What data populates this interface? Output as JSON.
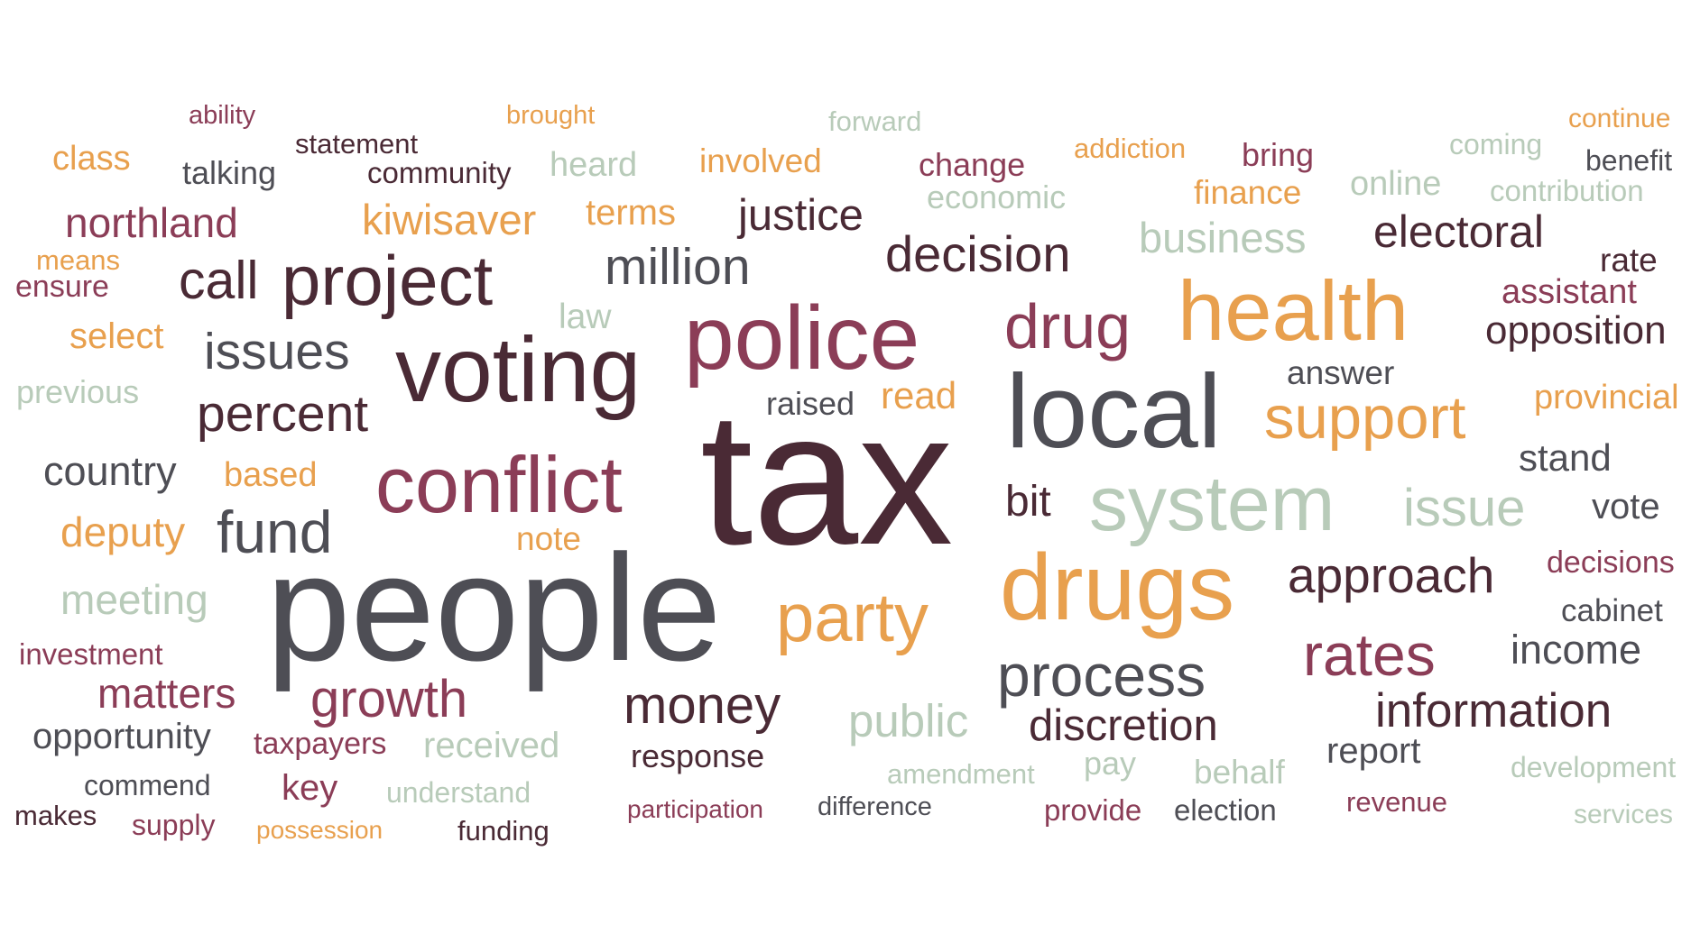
{
  "palette": {
    "plum": "#4a2a35",
    "charcoal": "#4e4e55",
    "maroon": "#8b3d57",
    "orange": "#e8a04e",
    "sage": "#b8cbb9"
  },
  "words": [
    {
      "text": "ability",
      "color": "maroon",
      "weight": 1
    },
    {
      "text": "brought",
      "color": "orange",
      "weight": 1
    },
    {
      "text": "forward",
      "color": "sage",
      "weight": 1
    },
    {
      "text": "continue",
      "color": "orange",
      "weight": 1
    },
    {
      "text": "statement",
      "color": "plum",
      "weight": 1
    },
    {
      "text": "class",
      "color": "orange",
      "weight": 2
    },
    {
      "text": "addiction",
      "color": "orange",
      "weight": 1
    },
    {
      "text": "bring",
      "color": "maroon",
      "weight": 2
    },
    {
      "text": "coming",
      "color": "sage",
      "weight": 1
    },
    {
      "text": "benefit",
      "color": "charcoal",
      "weight": 1
    },
    {
      "text": "talking",
      "color": "charcoal",
      "weight": 2
    },
    {
      "text": "community",
      "color": "plum",
      "weight": 1
    },
    {
      "text": "heard",
      "color": "sage",
      "weight": 2
    },
    {
      "text": "involved",
      "color": "orange",
      "weight": 2
    },
    {
      "text": "change",
      "color": "maroon",
      "weight": 2
    },
    {
      "text": "economic",
      "color": "sage",
      "weight": 1
    },
    {
      "text": "finance",
      "color": "orange",
      "weight": 2
    },
    {
      "text": "online",
      "color": "sage",
      "weight": 2
    },
    {
      "text": "contribution",
      "color": "sage",
      "weight": 1
    },
    {
      "text": "northland",
      "color": "maroon",
      "weight": 3
    },
    {
      "text": "kiwisaver",
      "color": "orange",
      "weight": 3
    },
    {
      "text": "terms",
      "color": "orange",
      "weight": 2
    },
    {
      "text": "justice",
      "color": "plum",
      "weight": 3
    },
    {
      "text": "business",
      "color": "sage",
      "weight": 3
    },
    {
      "text": "electoral",
      "color": "plum",
      "weight": 3
    },
    {
      "text": "means",
      "color": "orange",
      "weight": 1
    },
    {
      "text": "decision",
      "color": "plum",
      "weight": 4
    },
    {
      "text": "rate",
      "color": "plum",
      "weight": 2
    },
    {
      "text": "ensure",
      "color": "maroon",
      "weight": 2
    },
    {
      "text": "call",
      "color": "plum",
      "weight": 4
    },
    {
      "text": "project",
      "color": "plum",
      "weight": 5
    },
    {
      "text": "million",
      "color": "charcoal",
      "weight": 4
    },
    {
      "text": "assistant",
      "color": "maroon",
      "weight": 2
    },
    {
      "text": "health",
      "color": "orange",
      "weight": 6
    },
    {
      "text": "law",
      "color": "sage",
      "weight": 2
    },
    {
      "text": "select",
      "color": "orange",
      "weight": 2
    },
    {
      "text": "drug",
      "color": "maroon",
      "weight": 5
    },
    {
      "text": "opposition",
      "color": "plum",
      "weight": 3
    },
    {
      "text": "issues",
      "color": "charcoal",
      "weight": 4
    },
    {
      "text": "police",
      "color": "maroon",
      "weight": 6
    },
    {
      "text": "voting",
      "color": "plum",
      "weight": 6
    },
    {
      "text": "answer",
      "color": "charcoal",
      "weight": 2
    },
    {
      "text": "previous",
      "color": "sage",
      "weight": 2
    },
    {
      "text": "raised",
      "color": "charcoal",
      "weight": 2
    },
    {
      "text": "read",
      "color": "orange",
      "weight": 2
    },
    {
      "text": "provincial",
      "color": "orange",
      "weight": 2
    },
    {
      "text": "percent",
      "color": "plum",
      "weight": 4
    },
    {
      "text": "local",
      "color": "charcoal",
      "weight": 7
    },
    {
      "text": "support",
      "color": "orange",
      "weight": 4
    },
    {
      "text": "stand",
      "color": "charcoal",
      "weight": 2
    },
    {
      "text": "country",
      "color": "charcoal",
      "weight": 3
    },
    {
      "text": "based",
      "color": "orange",
      "weight": 2
    },
    {
      "text": "conflict",
      "color": "maroon",
      "weight": 6
    },
    {
      "text": "tax",
      "color": "plum",
      "weight": 10
    },
    {
      "text": "bit",
      "color": "plum",
      "weight": 3
    },
    {
      "text": "system",
      "color": "sage",
      "weight": 6
    },
    {
      "text": "issue",
      "color": "sage",
      "weight": 4
    },
    {
      "text": "vote",
      "color": "charcoal",
      "weight": 2
    },
    {
      "text": "deputy",
      "color": "orange",
      "weight": 3
    },
    {
      "text": "fund",
      "color": "charcoal",
      "weight": 5
    },
    {
      "text": "note",
      "color": "orange",
      "weight": 2
    },
    {
      "text": "decisions",
      "color": "maroon",
      "weight": 2
    },
    {
      "text": "drugs",
      "color": "orange",
      "weight": 7
    },
    {
      "text": "approach",
      "color": "plum",
      "weight": 4
    },
    {
      "text": "meeting",
      "color": "sage",
      "weight": 3
    },
    {
      "text": "people",
      "color": "charcoal",
      "weight": 9
    },
    {
      "text": "party",
      "color": "orange",
      "weight": 5
    },
    {
      "text": "cabinet",
      "color": "charcoal",
      "weight": 2
    },
    {
      "text": "investment",
      "color": "maroon",
      "weight": 2
    },
    {
      "text": "income",
      "color": "charcoal",
      "weight": 3
    },
    {
      "text": "rates",
      "color": "maroon",
      "weight": 5
    },
    {
      "text": "process",
      "color": "charcoal",
      "weight": 5
    },
    {
      "text": "matters",
      "color": "maroon",
      "weight": 3
    },
    {
      "text": "growth",
      "color": "maroon",
      "weight": 4
    },
    {
      "text": "money",
      "color": "plum",
      "weight": 4
    },
    {
      "text": "information",
      "color": "plum",
      "weight": 4
    },
    {
      "text": "public",
      "color": "sage",
      "weight": 4
    },
    {
      "text": "discretion",
      "color": "plum",
      "weight": 4
    },
    {
      "text": "opportunity",
      "color": "charcoal",
      "weight": 3
    },
    {
      "text": "taxpayers",
      "color": "maroon",
      "weight": 2
    },
    {
      "text": "received",
      "color": "sage",
      "weight": 3
    },
    {
      "text": "response",
      "color": "plum",
      "weight": 2
    },
    {
      "text": "report",
      "color": "charcoal",
      "weight": 3
    },
    {
      "text": "pay",
      "color": "sage",
      "weight": 2
    },
    {
      "text": "amendment",
      "color": "sage",
      "weight": 2
    },
    {
      "text": "behalf",
      "color": "sage",
      "weight": 2
    },
    {
      "text": "development",
      "color": "sage",
      "weight": 2
    },
    {
      "text": "commend",
      "color": "charcoal",
      "weight": 2
    },
    {
      "text": "key",
      "color": "maroon",
      "weight": 3
    },
    {
      "text": "understand",
      "color": "sage",
      "weight": 2
    },
    {
      "text": "makes",
      "color": "plum",
      "weight": 2
    },
    {
      "text": "participation",
      "color": "maroon",
      "weight": 1
    },
    {
      "text": "difference",
      "color": "charcoal",
      "weight": 1
    },
    {
      "text": "provide",
      "color": "maroon",
      "weight": 2
    },
    {
      "text": "election",
      "color": "charcoal",
      "weight": 2
    },
    {
      "text": "revenue",
      "color": "maroon",
      "weight": 2
    },
    {
      "text": "services",
      "color": "sage",
      "weight": 2
    },
    {
      "text": "supply",
      "color": "maroon",
      "weight": 2
    },
    {
      "text": "possession",
      "color": "orange",
      "weight": 1
    },
    {
      "text": "funding",
      "color": "plum",
      "weight": 2
    }
  ]
}
